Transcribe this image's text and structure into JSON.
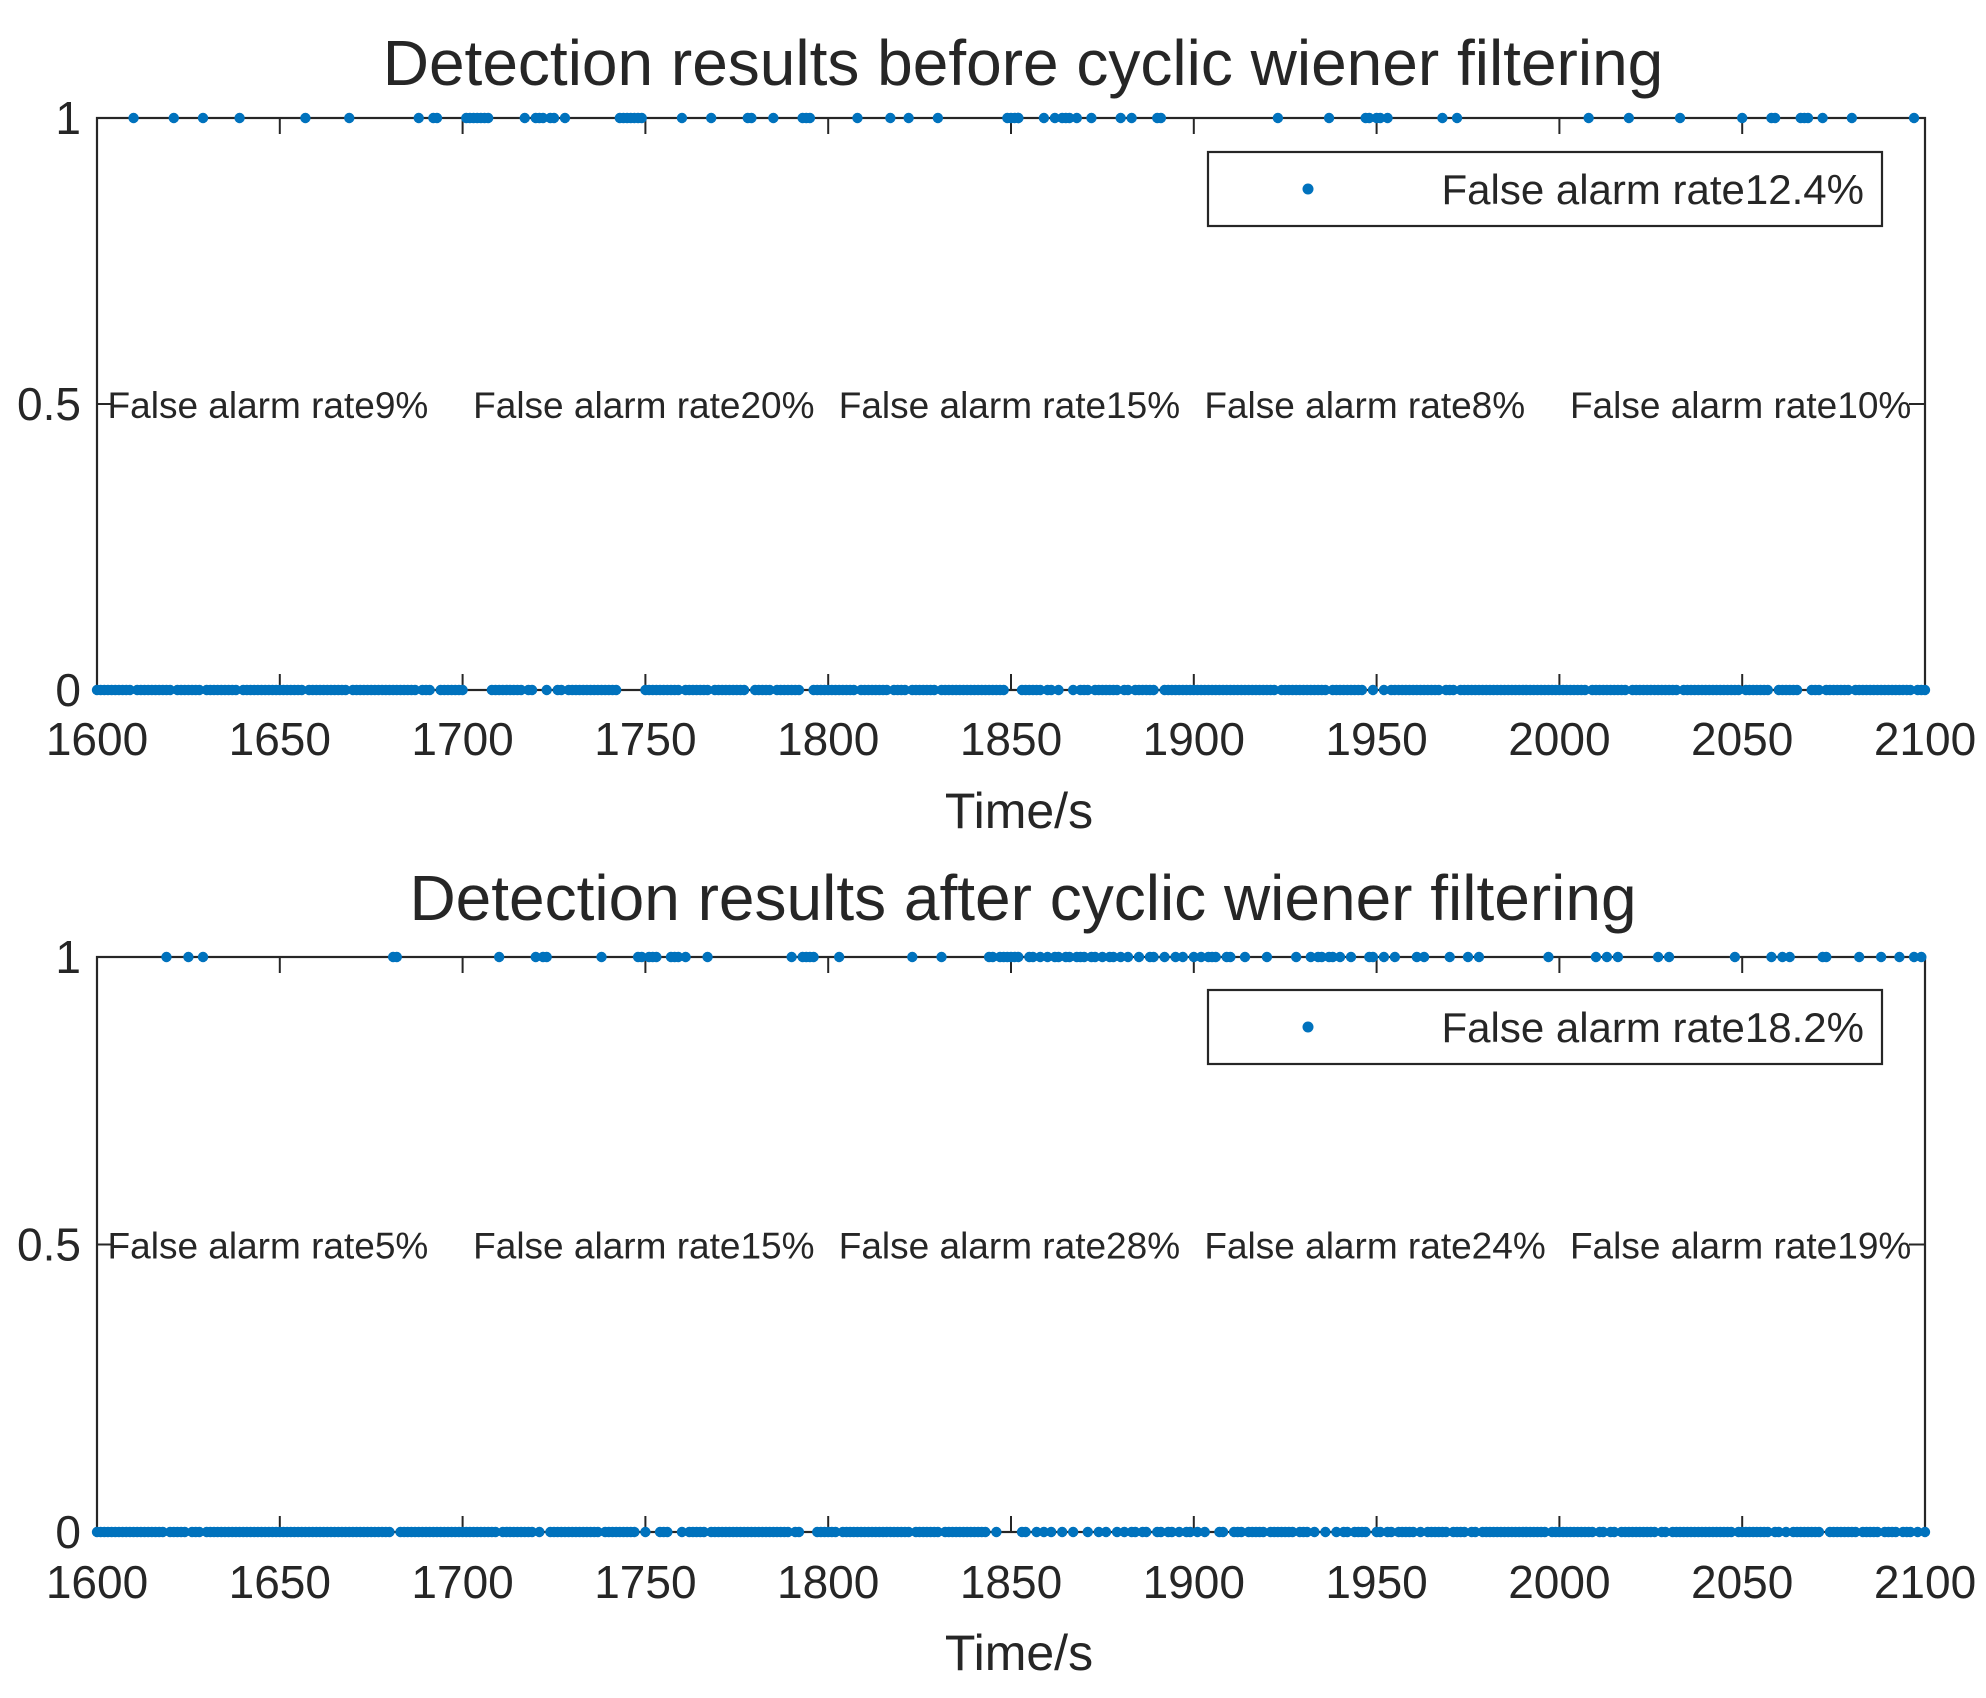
{
  "chart_data": [
    {
      "type": "scatter",
      "title": "Detection results before cyclic wiener filtering",
      "xlabel": "Time/s",
      "ylabel": "",
      "xlim": [
        1600,
        2100
      ],
      "ylim": [
        0,
        1
      ],
      "xticks": [
        "1600",
        "1650",
        "1700",
        "1750",
        "1800",
        "1850",
        "1900",
        "1950",
        "2000",
        "2050",
        "2100"
      ],
      "yticks": [
        "0",
        "0.5",
        "1"
      ],
      "grid": false,
      "legend_position": "top-right",
      "marker_color": "#0072BD",
      "series": [
        {
          "name": "False alarm rate12.4%",
          "x_detected": [
            1610,
            1621,
            1629,
            1639,
            1657,
            1669,
            1688,
            1692,
            1693,
            1701,
            1702,
            1703,
            1704,
            1705,
            1706,
            1707,
            1717,
            1720,
            1721,
            1722,
            1724,
            1725,
            1728,
            1743,
            1744,
            1745,
            1746,
            1747,
            1748,
            1749,
            1760,
            1768,
            1778,
            1779,
            1785,
            1793,
            1794,
            1795,
            1808,
            1817,
            1822,
            1830,
            1849,
            1850,
            1851,
            1852,
            1852,
            1859,
            1862,
            1864,
            1865,
            1866,
            1868,
            1872,
            1880,
            1883,
            1890,
            1891,
            1923,
            1937,
            1947,
            1948,
            1950,
            1951,
            1953,
            1968,
            1972,
            2008,
            2019,
            2033,
            2050,
            2058,
            2059,
            2066,
            2067,
            2068,
            2072,
            2080,
            2097
          ],
          "y_detected": 1,
          "baseline_y": 0
        }
      ],
      "annotations": [
        {
          "text": "False alarm rate9%",
          "x": 1610,
          "y": 0.5
        },
        {
          "text": "False alarm rate20%",
          "x": 1710,
          "y": 0.5
        },
        {
          "text": "False alarm rate15%",
          "x": 1810,
          "y": 0.5
        },
        {
          "text": "False alarm rate8%",
          "x": 1910,
          "y": 0.5
        },
        {
          "text": "False alarm rate10%",
          "x": 2010,
          "y": 0.5
        }
      ]
    },
    {
      "type": "scatter",
      "title": "Detection results after cyclic wiener filtering",
      "xlabel": "Time/s",
      "ylabel": "",
      "xlim": [
        1600,
        2100
      ],
      "ylim": [
        0,
        1
      ],
      "xticks": [
        "1600",
        "1650",
        "1700",
        "1750",
        "1800",
        "1850",
        "1900",
        "1950",
        "2000",
        "2050",
        "2100"
      ],
      "yticks": [
        "0",
        "0.5",
        "1"
      ],
      "grid": false,
      "legend_position": "top-right",
      "marker_color": "#0072BD",
      "series": [
        {
          "name": "False alarm rate18.2%",
          "x_detected": [
            1619,
            1625,
            1629,
            1681,
            1682,
            1710,
            1720,
            1722,
            1723,
            1738,
            1748,
            1749,
            1751,
            1752,
            1753,
            1757,
            1758,
            1759,
            1761,
            1767,
            1790,
            1793,
            1794,
            1795,
            1796,
            1803,
            1823,
            1831,
            1844,
            1845,
            1847,
            1848,
            1849,
            1850,
            1851,
            1852,
            1855,
            1856,
            1858,
            1860,
            1862,
            1863,
            1865,
            1866,
            1868,
            1869,
            1870,
            1872,
            1873,
            1875,
            1877,
            1878,
            1880,
            1882,
            1885,
            1888,
            1889,
            1892,
            1895,
            1897,
            1900,
            1902,
            1904,
            1905,
            1906,
            1909,
            1910,
            1914,
            1920,
            1928,
            1932,
            1934,
            1935,
            1937,
            1938,
            1940,
            1943,
            1948,
            1949,
            1952,
            1955,
            1961,
            1963,
            1970,
            1975,
            1978,
            1997,
            2010,
            2013,
            2016,
            2027,
            2030,
            2048,
            2058,
            2061,
            2063,
            2072,
            2073,
            2082,
            2088,
            2093,
            2097,
            2099
          ],
          "y_detected": 1,
          "baseline_y": 0
        }
      ],
      "annotations": [
        {
          "text": "False alarm rate5%",
          "x": 1610,
          "y": 0.5
        },
        {
          "text": "False alarm rate15%",
          "x": 1710,
          "y": 0.5
        },
        {
          "text": "False alarm rate28%",
          "x": 1810,
          "y": 0.5
        },
        {
          "text": "False alarm rate24%",
          "x": 1910,
          "y": 0.5
        },
        {
          "text": "False alarm rate19%",
          "x": 2010,
          "y": 0.5
        }
      ]
    }
  ]
}
